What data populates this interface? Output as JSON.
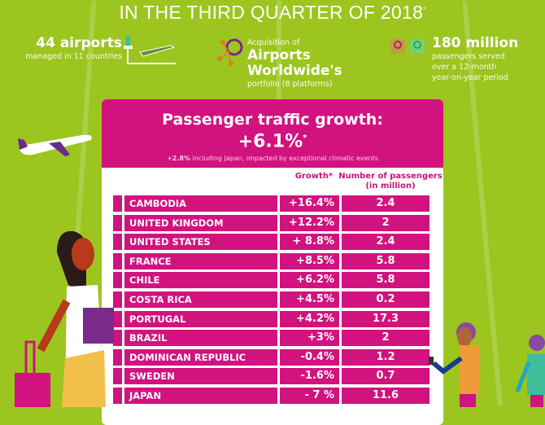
{
  "header": {
    "title": "IN THE THIRD QUARTER OF 2018",
    "title_mark": "*"
  },
  "stats": [
    {
      "headline": "44 airports",
      "lines": [
        "managed in 11 countries"
      ],
      "icon": "control-tower-plane-icon"
    },
    {
      "pre": "Acquisition of",
      "headline_lines": [
        "Airports",
        "Worldwide's"
      ],
      "lines": [
        "portfolio (8 platforms)"
      ],
      "icon": "network-icon"
    },
    {
      "headline": "180 million",
      "lines": [
        "passengers served",
        "over a 12-month",
        "year-on-year period"
      ],
      "icon": "passenger-badges-icon"
    }
  ],
  "card": {
    "heading": "Passenger traffic growth:",
    "growth": "+6.1%",
    "growth_mark": "*",
    "note_bold": "+2.8%",
    "note": " including Japan, impacted by exceptional climatic events",
    "columns": {
      "growth": "Growth*",
      "passengers_l1": "Number of passengers",
      "passengers_l2": "(in million)"
    },
    "rows": [
      {
        "country": "CAMBODIA",
        "growth": "+16.4%",
        "passengers": "2.4"
      },
      {
        "country": "UNITED KINGDOM",
        "growth": "+12.2%",
        "passengers": "2"
      },
      {
        "country": "UNITED STATES",
        "growth": "+ 8.8%",
        "passengers": "2.4"
      },
      {
        "country": "FRANCE",
        "growth": "+8.5%",
        "passengers": "5.8"
      },
      {
        "country": "CHILE",
        "growth": "+6.2%",
        "passengers": "5.8"
      },
      {
        "country": "COSTA RICA",
        "growth": "+4.5%",
        "passengers": "0.2"
      },
      {
        "country": "PORTUGAL",
        "growth": "+4.2%",
        "passengers": "17.3"
      },
      {
        "country": "BRAZIL",
        "growth": "+3%",
        "passengers": "2"
      },
      {
        "country": "DOMINICAN REPUBLIC",
        "growth": "-0.4%",
        "passengers": "1.2"
      },
      {
        "country": "SWEDEN",
        "growth": "-1.6%",
        "passengers": "0.7"
      },
      {
        "country": "JAPAN",
        "growth": "- 7 %",
        "passengers": "11.6"
      }
    ]
  },
  "colors": {
    "background": "#9cc51f",
    "accent": "#d2127f"
  }
}
